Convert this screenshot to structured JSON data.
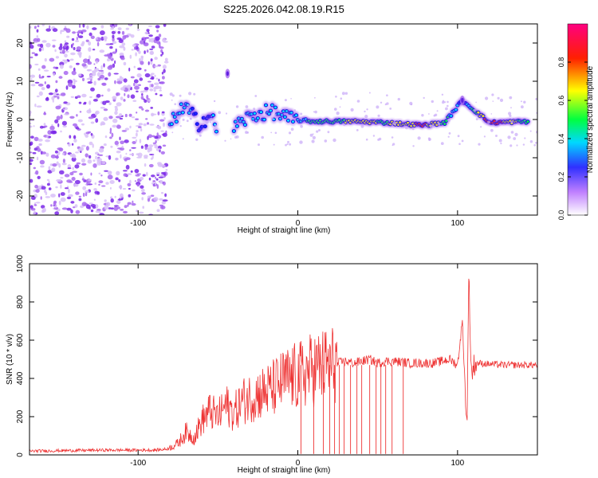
{
  "title": "S225.2026.042.08.19.R15",
  "chart_data": [
    {
      "type": "heatmap",
      "title": "S225.2026.042.08.19.R15",
      "xlabel": "Height of straight line (km)",
      "ylabel": "Frequency (Hz)",
      "xlim": [
        -168,
        150
      ],
      "ylim": [
        -25,
        25
      ],
      "xticks": [
        -100,
        0,
        100
      ],
      "yticks": [
        -20,
        -10,
        0,
        10,
        20
      ],
      "colorbar": {
        "label": "Normalized spectral amplitude",
        "range": [
          0,
          1
        ],
        "ticks": [
          "0.0",
          "0.2",
          "0.4",
          "0.6",
          "0.8"
        ],
        "tick_values": [
          0,
          0.2,
          0.4,
          0.6,
          0.8
        ],
        "colors": [
          "#ffffff",
          "#b060ff",
          "#2020ff",
          "#00e0ff",
          "#00ff40",
          "#ffff00",
          "#ff2000",
          "#ff0080"
        ]
      },
      "noise_region": {
        "x_range": [
          -168,
          -82
        ],
        "f_range": [
          -25,
          25
        ]
      },
      "ridge": [
        {
          "x": -80,
          "f": -2,
          "amp": 0.5
        },
        {
          "x": -75,
          "f": 2,
          "amp": 0.55
        },
        {
          "x": -70,
          "f": 3,
          "amp": 0.45
        },
        {
          "x": -62,
          "f": -1,
          "amp": 0.4
        },
        {
          "x": -55,
          "f": 1,
          "amp": 0.4
        },
        {
          "x": -50,
          "f": -3,
          "amp": 0.5
        },
        {
          "x": -44,
          "f": 12,
          "amp": 0.3
        },
        {
          "x": -40,
          "f": -2,
          "amp": 0.45
        },
        {
          "x": -33,
          "f": 0,
          "amp": 0.5
        },
        {
          "x": -25,
          "f": 1.5,
          "amp": 0.55
        },
        {
          "x": -15,
          "f": 2,
          "amp": 0.45
        },
        {
          "x": -5,
          "f": 0,
          "amp": 0.5
        },
        {
          "x": 10,
          "f": -0.5,
          "amp": 0.6
        },
        {
          "x": 35,
          "f": -0.5,
          "amp": 0.75
        },
        {
          "x": 55,
          "f": -0.8,
          "amp": 0.7
        },
        {
          "x": 78,
          "f": -1.5,
          "amp": 0.9
        },
        {
          "x": 92,
          "f": -0.8,
          "amp": 0.65
        },
        {
          "x": 103,
          "f": 5,
          "amp": 0.35
        },
        {
          "x": 120,
          "f": -0.8,
          "amp": 1.0
        },
        {
          "x": 145,
          "f": -0.5,
          "amp": 0.6
        }
      ]
    },
    {
      "type": "line",
      "xlabel": "Height of straight line (km)",
      "ylabel": "SNR (10 * v/v)",
      "xlim": [
        -168,
        150
      ],
      "ylim": [
        0,
        1000
      ],
      "xticks": [
        -100,
        0,
        100
      ],
      "yticks": [
        0,
        200,
        400,
        600,
        800,
        1000
      ],
      "color": "#ee3333",
      "x": [
        -168,
        -150,
        -120,
        -90,
        -82,
        -75,
        -70,
        -65,
        -60,
        -55,
        -50,
        -45,
        -40,
        -35,
        -30,
        -25,
        -20,
        -15,
        -10,
        -5,
        0,
        5,
        10,
        15,
        20,
        25,
        30,
        35,
        40,
        45,
        50,
        55,
        60,
        65,
        70,
        75,
        80,
        85,
        90,
        95,
        100,
        103,
        105,
        106,
        107,
        108,
        109,
        110,
        112,
        120,
        130,
        140,
        150
      ],
      "y": [
        20,
        22,
        25,
        25,
        30,
        60,
        120,
        90,
        180,
        230,
        200,
        260,
        220,
        280,
        300,
        320,
        330,
        350,
        380,
        400,
        410,
        430,
        450,
        460,
        470,
        480,
        490,
        480,
        490,
        500,
        480,
        490,
        490,
        485,
        480,
        480,
        480,
        480,
        490,
        500,
        470,
        700,
        300,
        150,
        980,
        600,
        400,
        470,
        480,
        475,
        470,
        470,
        470
      ],
      "dropouts": [
        2,
        10,
        16,
        20,
        23,
        26,
        29,
        33,
        37,
        40,
        45,
        49,
        52,
        55,
        59,
        66
      ]
    }
  ]
}
